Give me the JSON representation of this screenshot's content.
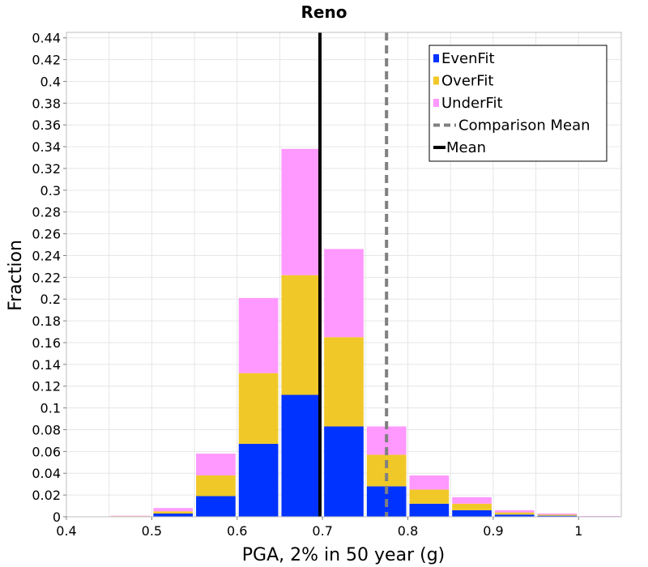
{
  "chart_data": {
    "type": "bar",
    "stacked": true,
    "title": "Reno",
    "xlabel": "PGA, 2% in 50 year (g)",
    "ylabel": "Fraction",
    "xlim": [
      0.4,
      1.05
    ],
    "ylim": [
      0,
      0.445
    ],
    "bin_width": 0.05,
    "grid": true,
    "legend_position": "top-right",
    "x_ticks": [
      0.4,
      0.5,
      0.6,
      0.7,
      0.8,
      0.9,
      1.0
    ],
    "x_tick_labels": [
      "0.4",
      "0.5",
      "0.6",
      "0.7",
      "0.8",
      "0.9",
      "1"
    ],
    "y_ticks": [
      0,
      0.02,
      0.04,
      0.06,
      0.08,
      0.1,
      0.12,
      0.14,
      0.16,
      0.18,
      0.2,
      0.22,
      0.24,
      0.26,
      0.28,
      0.3,
      0.32,
      0.34,
      0.36,
      0.38,
      0.4,
      0.42,
      0.44
    ],
    "y_tick_labels": [
      "0",
      "0.02",
      "0.04",
      "0.06",
      "0.08",
      "0.1",
      "0.12",
      "0.14",
      "0.16",
      "0.18",
      "0.2",
      "0.22",
      "0.24",
      "0.26",
      "0.28",
      "0.3",
      "0.32",
      "0.34",
      "0.36",
      "0.38",
      "0.4",
      "0.42",
      "0.44"
    ],
    "bin_centers": [
      0.475,
      0.525,
      0.575,
      0.625,
      0.675,
      0.725,
      0.775,
      0.825,
      0.875,
      0.925,
      0.975,
      1.025
    ],
    "series": [
      {
        "name": "EvenFit",
        "color": "#0033ff",
        "values": [
          0.0003,
          0.003,
          0.019,
          0.067,
          0.112,
          0.083,
          0.028,
          0.012,
          0.006,
          0.002,
          0.001,
          0.0003
        ]
      },
      {
        "name": "OverFit",
        "color": "#f0c828",
        "values": [
          0.0003,
          0.002,
          0.019,
          0.065,
          0.11,
          0.082,
          0.029,
          0.013,
          0.006,
          0.002,
          0.001,
          0.0002
        ]
      },
      {
        "name": "UnderFit",
        "color": "#ff99ff",
        "values": [
          0.0004,
          0.003,
          0.02,
          0.069,
          0.116,
          0.081,
          0.026,
          0.013,
          0.006,
          0.002,
          0.001,
          0.0002
        ]
      }
    ],
    "reference_lines": [
      {
        "name": "Comparison Mean",
        "x": 0.775,
        "color": "#808080",
        "style": "dashed"
      },
      {
        "name": "Mean",
        "x": 0.697,
        "color": "#000000",
        "style": "solid"
      }
    ],
    "legend": [
      {
        "label": "EvenFit",
        "kind": "box",
        "color": "#0033ff"
      },
      {
        "label": "OverFit",
        "kind": "box",
        "color": "#f0c828"
      },
      {
        "label": "UnderFit",
        "kind": "box",
        "color": "#ff99ff"
      },
      {
        "label": "Comparison Mean",
        "kind": "dashed-line",
        "color": "#808080"
      },
      {
        "label": "Mean",
        "kind": "solid-line",
        "color": "#000000"
      }
    ]
  }
}
